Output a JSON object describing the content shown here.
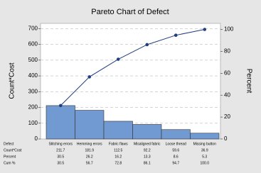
{
  "chart_data": {
    "type": "pareto",
    "title": "Pareto Chart of Defect",
    "y_label": "Count*Cost",
    "y2_label": "Percent",
    "x_label": "Defect",
    "categories": [
      "Stitching errors",
      "Hemming errors",
      "Fabric flaws",
      "Misaligned fabric",
      "Loose thread",
      "Missing button"
    ],
    "series": [
      {
        "name": "Count*Cost",
        "color": "#7199d2",
        "values": [
          211.7,
          181.9,
          112.5,
          92.2,
          59.6,
          36.9
        ]
      },
      {
        "name": "Percent",
        "values": [
          30.5,
          26.2,
          16.2,
          13.3,
          8.6,
          5.3
        ]
      },
      {
        "name": "Cum %",
        "axis": "y2",
        "color": "#1f3f80",
        "values": [
          30.5,
          56.7,
          72.8,
          86.1,
          94.7,
          100
        ],
        "value_labels": [
          "30.5",
          "56.7",
          "72.8",
          "86.1",
          "94.7",
          "100.0"
        ]
      }
    ],
    "ylim": [
      0,
      733
    ],
    "yticks": [
      0,
      100,
      200,
      300,
      400,
      500,
      600,
      700
    ],
    "y2lim": [
      0,
      105.5
    ],
    "y2ticks": [
      0,
      20,
      40,
      60,
      80,
      100
    ],
    "grid": true
  }
}
